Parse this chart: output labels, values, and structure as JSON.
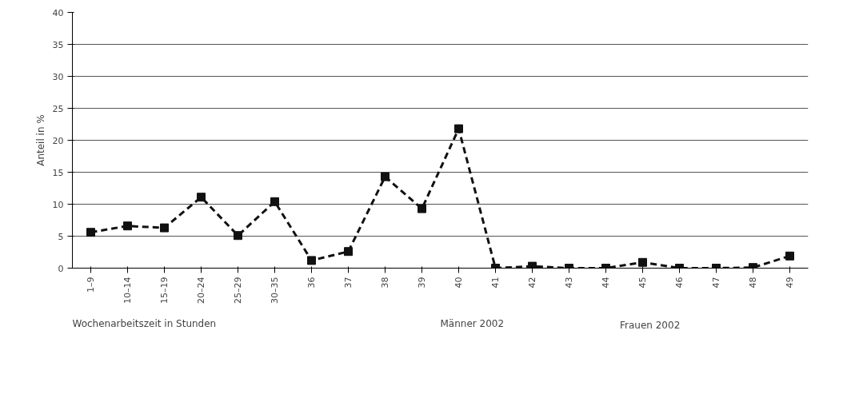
{
  "chart_data": {
    "type": "line",
    "xlabel": "Wochenarbeitszeit in Stunden",
    "ylabel": "Anteil in %",
    "categories": [
      "1–9",
      "10–14",
      "15–19",
      "20–24",
      "25–29",
      "30–35",
      "36",
      "37",
      "38",
      "39",
      "40",
      "41",
      "42",
      "43",
      "44",
      "45",
      "46",
      "47",
      "48",
      "49"
    ],
    "series": [
      {
        "name": "Frauen 2002",
        "color": "#111111",
        "values": [
          5.6,
          6.6,
          6.3,
          11.1,
          5.1,
          10.4,
          1.2,
          2.6,
          14.3,
          9.3,
          21.8,
          0,
          0.3,
          0,
          0,
          0.9,
          0,
          0,
          0.1,
          1.9
        ]
      }
    ],
    "ylim": [
      0,
      40
    ],
    "yticks": [
      0,
      5,
      10,
      15,
      20,
      25,
      30,
      35,
      40
    ],
    "annotations": [
      "Männer 2002"
    ],
    "grid": "y",
    "legend": "bottom",
    "marker": "square",
    "line_style": "dashed"
  }
}
